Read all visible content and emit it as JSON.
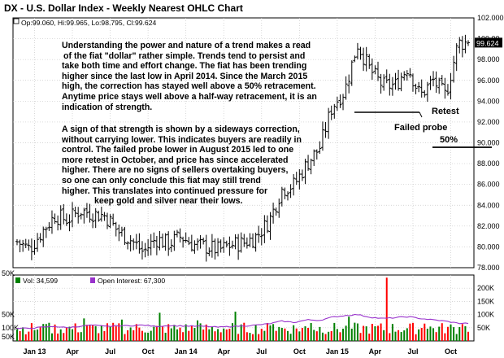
{
  "title": "DX - U.S. Dollar Index - Weekly Nearest OHLC Chart",
  "ohlc_readout": "Op:99.060, Hi:99.965, Lo:98.795, Cl:99.624",
  "last_price_label": "99.624",
  "volume_axis_title": "50K",
  "volume_legend": {
    "vol_label": "Vol: 34,599",
    "oi_label": "Open Interest: 67,300"
  },
  "annotations": {
    "paragraph_1": [
      "Understanding the power and nature of a trend makes a read",
      "of the fiat \"dollar\" rather simple.  Trends tend to persist and",
      "take both time and effort change.  The fiat has been trending",
      "higher since the last low in April 2014.  Since the March 2015",
      "high, the correction has stayed well above a 50% retracement.",
      "Anytime price stays well above a half-way retracement, it is an",
      "indication of strength."
    ],
    "paragraph_2": [
      "A sign of that strength is shown by a sideways correction,",
      "without carrying lower.  This indicates buyers are readily in",
      "control.  The failed probe lower in August 2015 led to one",
      "more retest in October, and price has since accelerated",
      "higher.  There are no signs of sellers overtaking buyers,",
      "so one can only conclude this fiat may still trend",
      "higher.  This translates into continued pressure for",
      "keep gold and silver  near their lows."
    ],
    "retest": "Retest",
    "failed_probe": "Failed probe",
    "fifty_pct": "50%"
  },
  "colors": {
    "up": "#008000",
    "down": "#ff0000",
    "open_interest": "#9933cc",
    "grid": "#c8c8c8",
    "price_label_bg": "#000000"
  },
  "chart_data": {
    "type": "ohlc",
    "x_tick_labels": [
      "Jan 13",
      "Apr",
      "Jul",
      "Oct",
      "Jan 14",
      "Apr",
      "Jul",
      "Oct",
      "Jan 15",
      "Apr",
      "Jul",
      "Oct"
    ],
    "price_axis": {
      "ticks": [
        "78.000",
        "80.000",
        "82.000",
        "84.000",
        "86.000",
        "88.000",
        "90.000",
        "92.000",
        "94.000",
        "96.000",
        "98.000",
        "100.00",
        "102.000"
      ],
      "ylim": [
        78,
        102
      ]
    },
    "volume_axis": {
      "ticks": [
        "50K",
        "100K",
        "150K",
        "200K"
      ],
      "left_ticks": [
        "50K",
        "100K",
        "50K"
      ],
      "ylim": [
        0,
        250
      ]
    },
    "price_close_monthly": {
      "months": [
        "2012-12",
        "2013-01",
        "2013-02",
        "2013-03",
        "2013-04",
        "2013-05",
        "2013-06",
        "2013-07",
        "2013-08",
        "2013-09",
        "2013-10",
        "2013-11",
        "2013-12",
        "2014-01",
        "2014-02",
        "2014-03",
        "2014-04",
        "2014-05",
        "2014-06",
        "2014-07",
        "2014-08",
        "2014-09",
        "2014-10",
        "2014-11",
        "2014-12",
        "2015-01",
        "2015-02",
        "2015-03",
        "2015-04",
        "2015-05",
        "2015-06",
        "2015-07",
        "2015-08",
        "2015-09",
        "2015-10",
        "2015-11"
      ],
      "values": [
        80.5,
        79.8,
        81.5,
        83.0,
        82.6,
        83.5,
        83.2,
        83.0,
        81.5,
        80.7,
        79.5,
        80.8,
        80.3,
        81.0,
        80.2,
        80.0,
        79.7,
        80.2,
        80.4,
        81.0,
        82.5,
        85.5,
        86.0,
        88.0,
        89.5,
        93.5,
        95.0,
        99.5,
        97.0,
        95.5,
        95.5,
        97.3,
        94.5,
        96.0,
        94.5,
        99.6
      ]
    },
    "volume_series": {
      "name": "Vol",
      "last": 34599
    },
    "open_interest_series": {
      "name": "Open Interest",
      "last": 67300,
      "monthly_k": [
        47,
        48,
        52,
        55,
        50,
        56,
        60,
        55,
        57,
        58,
        60,
        55,
        58,
        57,
        56,
        55,
        52,
        55,
        57,
        60,
        65,
        75,
        70,
        80,
        78,
        90,
        96,
        100,
        90,
        85,
        88,
        92,
        85,
        80,
        75,
        67
      ]
    }
  }
}
